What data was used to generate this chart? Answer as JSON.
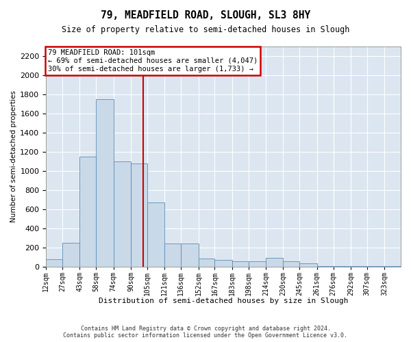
{
  "title": "79, MEADFIELD ROAD, SLOUGH, SL3 8HY",
  "subtitle": "Size of property relative to semi-detached houses in Slough",
  "xlabel": "Distribution of semi-detached houses by size in Slough",
  "ylabel": "Number of semi-detached properties",
  "footer_line1": "Contains HM Land Registry data © Crown copyright and database right 2024.",
  "footer_line2": "Contains public sector information licensed under the Open Government Licence v3.0.",
  "annotation_line1": "79 MEADFIELD ROAD: 101sqm",
  "annotation_line2": "← 69% of semi-detached houses are smaller (4,047)",
  "annotation_line3": "30% of semi-detached houses are larger (1,733) →",
  "property_size": 101,
  "bar_color": "#c9d9e8",
  "bar_edge_color": "#5b8db8",
  "vline_color": "#cc0000",
  "background_color": "#dce6f0",
  "annotation_box_color": "#ffffff",
  "annotation_box_edge": "#cc0000",
  "categories": [
    "12sqm",
    "27sqm",
    "43sqm",
    "58sqm",
    "74sqm",
    "90sqm",
    "105sqm",
    "121sqm",
    "136sqm",
    "152sqm",
    "167sqm",
    "183sqm",
    "198sqm",
    "214sqm",
    "230sqm",
    "245sqm",
    "261sqm",
    "276sqm",
    "292sqm",
    "307sqm",
    "323sqm"
  ],
  "bin_edges": [
    12,
    27,
    43,
    58,
    74,
    90,
    105,
    121,
    136,
    152,
    167,
    183,
    198,
    214,
    230,
    245,
    261,
    276,
    292,
    307,
    323,
    338
  ],
  "values": [
    80,
    250,
    1150,
    1750,
    1100,
    1080,
    670,
    240,
    240,
    85,
    75,
    55,
    55,
    95,
    55,
    35,
    10,
    8,
    5,
    4,
    4
  ],
  "ylim": [
    0,
    2300
  ],
  "yticks": [
    0,
    200,
    400,
    600,
    800,
    1000,
    1200,
    1400,
    1600,
    1800,
    2000,
    2200
  ]
}
